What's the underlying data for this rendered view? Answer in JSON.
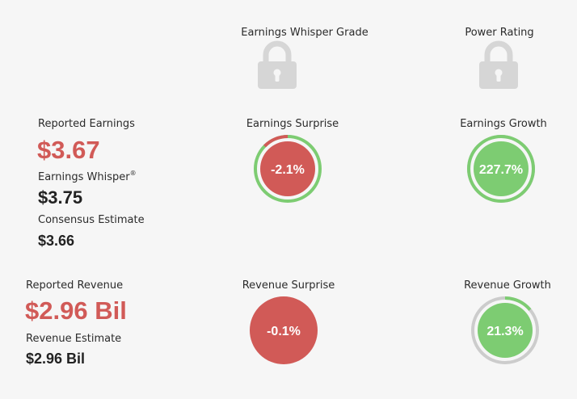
{
  "headers": {
    "whisper_grade": "Earnings Whisper Grade",
    "power_rating": "Power Rating"
  },
  "earnings": {
    "reported_label": "Reported Earnings",
    "reported_value": "$3.67",
    "whisper_label": "Earnings Whisper",
    "whisper_mark": "®",
    "whisper_value": "$3.75",
    "consensus_label": "Consensus Estimate",
    "consensus_value": "$3.66",
    "surprise_label": "Earnings Surprise",
    "surprise_value": "-2.1%",
    "surprise_fraction": 0.021,
    "growth_label": "Earnings Growth",
    "growth_value": "227.7%",
    "growth_fraction": 1.0
  },
  "revenue": {
    "reported_label": "Reported Revenue",
    "reported_value": "$2.96 Bil",
    "estimate_label": "Revenue Estimate",
    "estimate_value": "$2.96 Bil",
    "surprise_label": "Revenue Surprise",
    "surprise_value": "-0.1%",
    "surprise_fraction": 0.001,
    "growth_label": "Revenue Growth",
    "growth_value": "21.3%",
    "growth_fraction": 0.14
  },
  "icons": {
    "whisper_grade_lock": "lock-icon",
    "power_rating_lock": "lock-icon"
  },
  "colors": {
    "negative": "#d15a57",
    "positive": "#7dcc72",
    "neutral_track": "#cccccc",
    "lock": "#d6d6d6"
  }
}
